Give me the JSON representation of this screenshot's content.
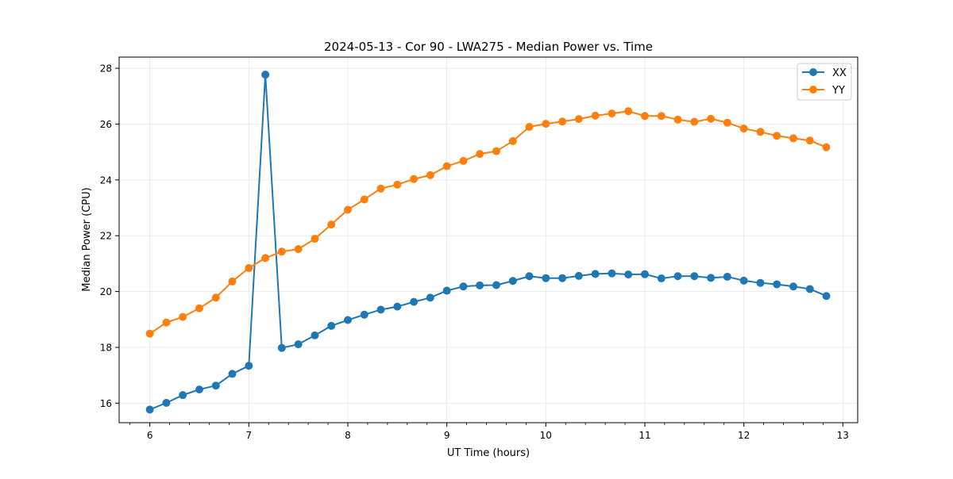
{
  "chart_data": {
    "type": "line",
    "title": "2024-05-13 - Cor 90 - LWA275 - Median Power vs. Time",
    "xlabel": "UT Time (hours)",
    "ylabel": "Median Power (CPU)",
    "xlim": [
      5.69,
      13.15
    ],
    "ylim": [
      15.3,
      28.4
    ],
    "x_ticks": [
      6,
      7,
      8,
      9,
      10,
      11,
      12,
      13
    ],
    "y_ticks": [
      16,
      18,
      20,
      22,
      24,
      26,
      28
    ],
    "grid": true,
    "legend_position": "upper right",
    "x": [
      6.0,
      6.167,
      6.333,
      6.5,
      6.667,
      6.833,
      7.0,
      7.167,
      7.333,
      7.5,
      7.667,
      7.833,
      8.0,
      8.167,
      8.333,
      8.5,
      8.667,
      8.833,
      9.0,
      9.167,
      9.333,
      9.5,
      9.667,
      9.833,
      10.0,
      10.167,
      10.333,
      10.5,
      10.667,
      10.833,
      11.0,
      11.167,
      11.333,
      11.5,
      11.667,
      11.833,
      12.0,
      12.167,
      12.333,
      12.5,
      12.667,
      12.833
    ],
    "series": [
      {
        "name": "XX",
        "color": "#1f77b4",
        "values": [
          15.77,
          16.01,
          16.29,
          16.49,
          16.63,
          17.05,
          17.34,
          27.77,
          17.98,
          18.11,
          18.43,
          18.77,
          18.98,
          19.17,
          19.35,
          19.46,
          19.63,
          19.78,
          20.03,
          20.18,
          20.22,
          20.23,
          20.38,
          20.55,
          20.48,
          20.48,
          20.56,
          20.63,
          20.65,
          20.61,
          20.62,
          20.47,
          20.55,
          20.55,
          20.49,
          20.53,
          20.39,
          20.31,
          20.26,
          20.18,
          20.09,
          19.84
        ]
      },
      {
        "name": "YY",
        "color": "#ff7f0e",
        "values": [
          18.49,
          18.89,
          19.09,
          19.4,
          19.78,
          20.36,
          20.84,
          21.2,
          21.43,
          21.52,
          21.89,
          22.4,
          22.93,
          23.3,
          23.69,
          23.83,
          24.03,
          24.17,
          24.49,
          24.68,
          24.93,
          25.03,
          25.39,
          25.9,
          26.01,
          26.09,
          26.18,
          26.3,
          26.38,
          26.46,
          26.29,
          26.29,
          26.16,
          26.08,
          26.19,
          26.05,
          25.84,
          25.72,
          25.58,
          25.49,
          25.41,
          25.17
        ]
      }
    ]
  }
}
